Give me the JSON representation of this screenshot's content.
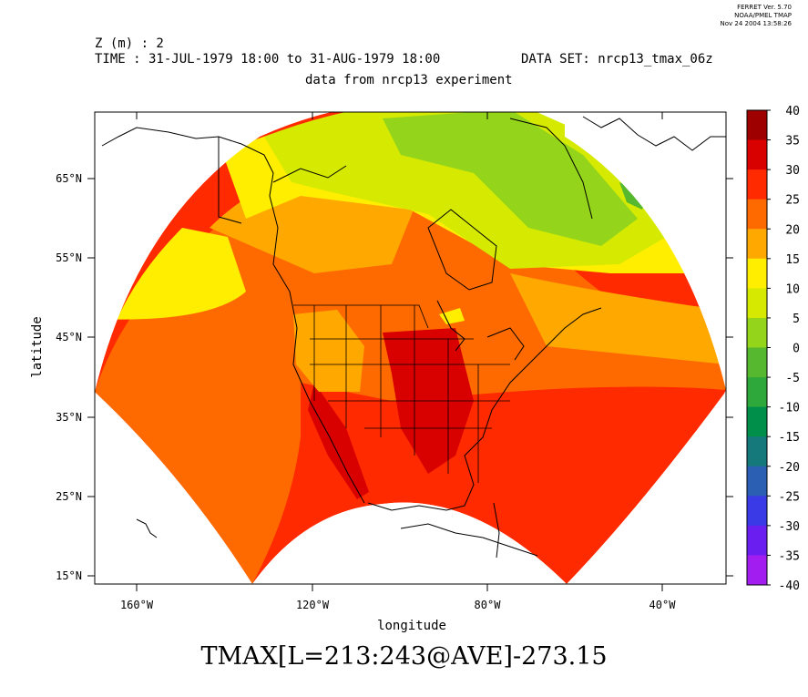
{
  "credit": {
    "line1": "FERRET Ver. 5.70",
    "line2": "NOAA/PMEL TMAP",
    "line3": "Nov 24 2004 13:58:26"
  },
  "header": {
    "z_line": "Z (m) : 2",
    "time_line": "TIME : 31-JUL-1979 18:00 to 31-AUG-1979 18:00",
    "dataset_line": "DATA SET: nrcp13_tmax_06z",
    "subtitle": "data from nrcp13 experiment"
  },
  "axes": {
    "xlabel": "longitude",
    "ylabel": "latitude",
    "x_ticks": [
      "160°W",
      "120°W",
      "80°W",
      "40°W"
    ],
    "y_ticks": [
      "65°N",
      "55°N",
      "45°N",
      "35°N",
      "25°N",
      "15°N"
    ]
  },
  "colorbar": {
    "labels": [
      "40",
      "35",
      "30",
      "25",
      "20",
      "15",
      "10",
      "5",
      "0",
      "-5",
      "-10",
      "-15",
      "-20",
      "-25",
      "-30",
      "-35",
      "-40"
    ],
    "colors": [
      "#9e0000",
      "#d90000",
      "#ff2a00",
      "#ff6a00",
      "#ffa800",
      "#ffee00",
      "#d5ea00",
      "#94d51c",
      "#55b82e",
      "#2ea83a",
      "#008f4a",
      "#15787a",
      "#2a5fb4",
      "#3a3ae6",
      "#6a1ef0",
      "#a21ef0",
      "#d21ef0"
    ]
  },
  "footer": {
    "expression": "TMAX[L=213:243@AVE]-273.15"
  }
}
